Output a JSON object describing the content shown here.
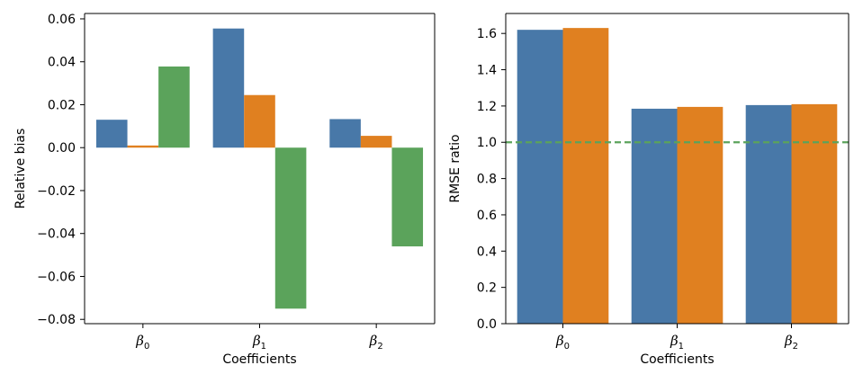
{
  "chart_data": [
    {
      "type": "bar",
      "xlabel": "Coefficients",
      "ylabel": "Relative bias",
      "categories": [
        {
          "symbol": "β",
          "subscript": "0"
        },
        {
          "symbol": "β",
          "subscript": "1"
        },
        {
          "symbol": "β",
          "subscript": "2"
        }
      ],
      "series": [
        {
          "name": "series-1",
          "color": "#4878A8",
          "values": [
            0.013,
            0.0555,
            0.0133
          ]
        },
        {
          "name": "series-2",
          "color": "#E08020",
          "values": [
            0.001,
            0.0245,
            0.0055
          ]
        },
        {
          "name": "series-3",
          "color": "#5BA35B",
          "values": [
            0.0378,
            -0.075,
            -0.046
          ]
        }
      ],
      "ylim": [
        -0.082,
        0.0625
      ],
      "yticks": [
        0.06,
        0.04,
        0.02,
        0.0,
        -0.02,
        -0.04,
        -0.06,
        -0.08
      ],
      "ytick_labels": [
        "0.06",
        "0.04",
        "0.02",
        "0.00",
        "−0.02",
        "−0.04",
        "−0.06",
        "−0.08"
      ]
    },
    {
      "type": "bar",
      "xlabel": "Coefficients",
      "ylabel": "RMSE ratio",
      "categories": [
        {
          "symbol": "β",
          "subscript": "0"
        },
        {
          "symbol": "β",
          "subscript": "1"
        },
        {
          "symbol": "β",
          "subscript": "2"
        }
      ],
      "series": [
        {
          "name": "series-1",
          "color": "#4878A8",
          "values": [
            1.62,
            1.185,
            1.205
          ]
        },
        {
          "name": "series-2",
          "color": "#E08020",
          "values": [
            1.63,
            1.195,
            1.21
          ]
        }
      ],
      "reference_line": {
        "y": 1.0,
        "color": "#5BA35B",
        "style": "dashed"
      },
      "ylim": [
        0.0,
        1.71
      ],
      "yticks": [
        0.0,
        0.2,
        0.4,
        0.6,
        0.8,
        1.0,
        1.2,
        1.4,
        1.6
      ],
      "ytick_labels": [
        "0.0",
        "0.2",
        "0.4",
        "0.6",
        "0.8",
        "1.0",
        "1.2",
        "1.4",
        "1.6"
      ]
    }
  ]
}
